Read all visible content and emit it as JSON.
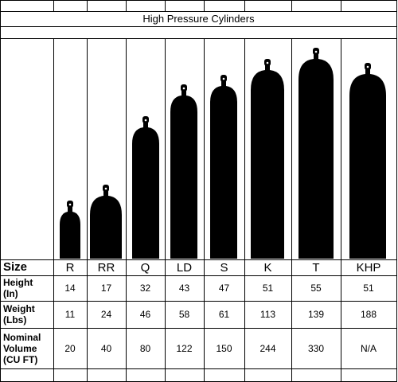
{
  "title": "High Pressure Cylinders",
  "table": {
    "header": [
      "Size",
      "R",
      "RR",
      "Q",
      "LD",
      "S",
      "K",
      "T",
      "KHP"
    ],
    "rows": [
      [
        "Height\n(In)",
        14,
        17,
        32,
        43,
        47,
        51,
        55,
        51
      ],
      [
        "Weight\n(Lbs)",
        11,
        24,
        46,
        58,
        61,
        113,
        139,
        188
      ],
      [
        "Nominal\nVolume\n(CU FT)",
        20,
        40,
        80,
        122,
        150,
        244,
        330,
        "N/A"
      ]
    ]
  }
}
